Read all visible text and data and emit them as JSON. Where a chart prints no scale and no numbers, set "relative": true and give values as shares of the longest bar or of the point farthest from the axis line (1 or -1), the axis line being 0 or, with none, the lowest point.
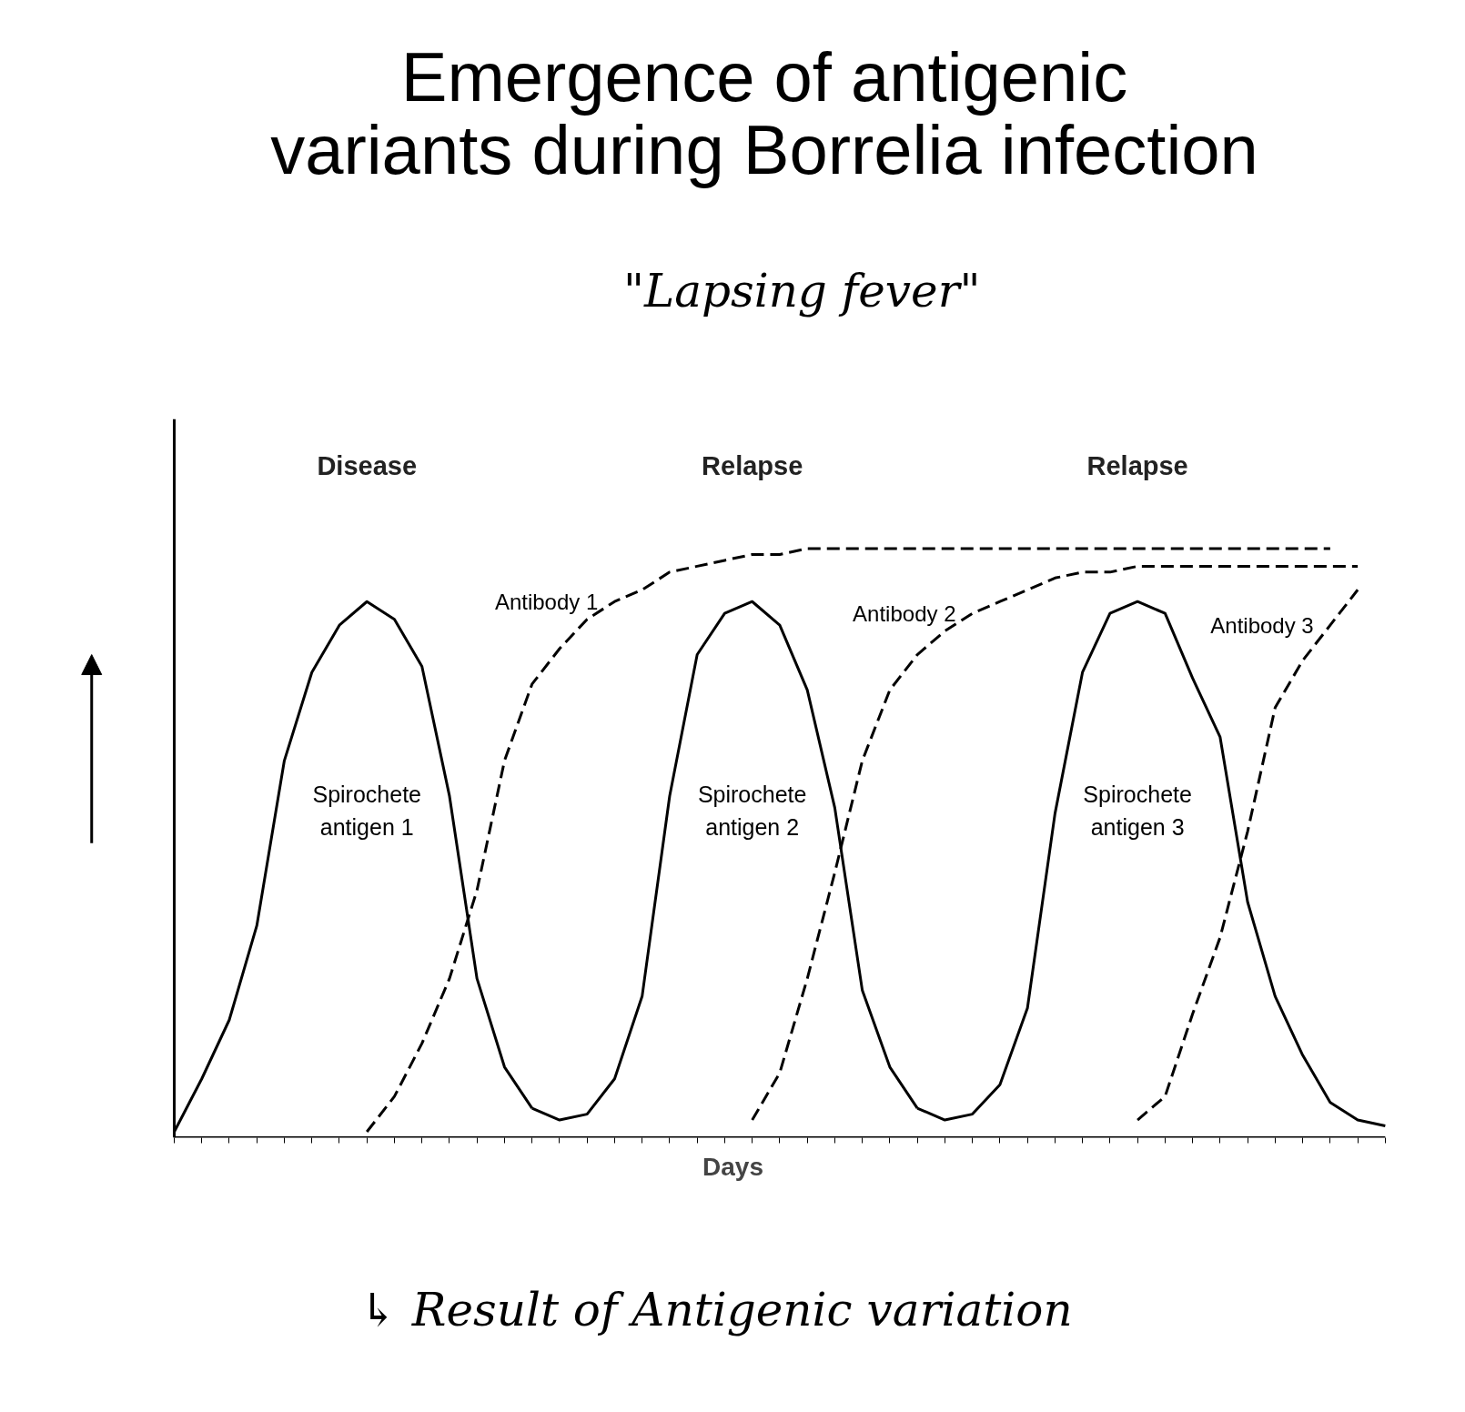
{
  "chart_data": {
    "type": "line",
    "relative": true,
    "title": "Emergence of antigenic variants during Borrelia infection",
    "subtitle": "\"Lapsing fever\"",
    "xlabel": "Days",
    "line_style": "solid",
    "marker": "none",
    "categories": [
      null,
      null,
      null,
      null,
      null,
      null,
      null,
      null,
      null,
      null,
      null,
      null,
      null,
      null,
      null,
      null,
      null,
      null,
      null,
      null,
      null,
      null,
      null,
      null,
      null,
      null,
      null,
      null,
      null,
      null,
      null,
      null,
      null,
      null,
      null,
      null,
      null,
      null,
      null,
      null,
      null,
      null,
      null,
      null,
      null
    ],
    "series": [
      {
        "name": "Spirochete antigen 1",
        "color": "#000000",
        "values": [
          0.01,
          0.1,
          0.2,
          0.36,
          0.64,
          0.79,
          0.87,
          0.91,
          0.88,
          0.8,
          0.58,
          0.27,
          0.12,
          0.05,
          null,
          null,
          null,
          null,
          null,
          null,
          null,
          null,
          null,
          null,
          null,
          null,
          null,
          null,
          null,
          null,
          null,
          null,
          null,
          null,
          null,
          null,
          null,
          null,
          null,
          null,
          null,
          null,
          null,
          null,
          null
        ]
      },
      {
        "name": "Spirochete antigen 2",
        "color": "#000000",
        "values": [
          null,
          null,
          null,
          null,
          null,
          null,
          null,
          null,
          null,
          null,
          null,
          null,
          null,
          0.05,
          0.03,
          0.04,
          0.1,
          0.24,
          0.58,
          0.82,
          0.89,
          0.91,
          0.87,
          0.76,
          0.56,
          0.25,
          0.12,
          0.05,
          null,
          null,
          null,
          null,
          null,
          null,
          null,
          null,
          null,
          null,
          null,
          null,
          null,
          null,
          null,
          null,
          null
        ]
      },
      {
        "name": "Spirochete antigen 3",
        "color": "#000000",
        "values": [
          null,
          null,
          null,
          null,
          null,
          null,
          null,
          null,
          null,
          null,
          null,
          null,
          null,
          null,
          null,
          null,
          null,
          null,
          null,
          null,
          null,
          null,
          null,
          null,
          null,
          null,
          null,
          0.05,
          0.03,
          0.04,
          0.09,
          0.22,
          0.55,
          0.79,
          0.89,
          0.91,
          0.89,
          0.78,
          0.68,
          0.4,
          0.24,
          0.14,
          0.06,
          0.03,
          0.02
        ]
      },
      {
        "name": "Antibody 1",
        "color": "#000000",
        "line_style": "dashed",
        "values": [
          null,
          null,
          null,
          null,
          null,
          null,
          null,
          0.01,
          0.07,
          0.16,
          0.27,
          0.42,
          0.64,
          0.77,
          0.83,
          0.88,
          0.91,
          0.93,
          0.96,
          0.97,
          0.98,
          0.99,
          0.99,
          1,
          1,
          1,
          1,
          1,
          1,
          1,
          1,
          1,
          1,
          1,
          1,
          1,
          1,
          1,
          1,
          1,
          1,
          1,
          1,
          null,
          null
        ]
      },
      {
        "name": "Antibody 2",
        "color": "#000000",
        "line_style": "dashed",
        "values": [
          null,
          null,
          null,
          null,
          null,
          null,
          null,
          null,
          null,
          null,
          null,
          null,
          null,
          null,
          null,
          null,
          null,
          null,
          null,
          null,
          null,
          0.03,
          0.11,
          0.27,
          0.45,
          0.64,
          0.76,
          0.82,
          0.86,
          0.89,
          0.91,
          0.93,
          0.95,
          0.96,
          0.96,
          0.97,
          0.97,
          0.97,
          0.97,
          0.97,
          0.97,
          0.97,
          0.97,
          0.97,
          null
        ]
      },
      {
        "name": "Antibody 3",
        "color": "#000000",
        "line_style": "dashed",
        "values": [
          null,
          null,
          null,
          null,
          null,
          null,
          null,
          null,
          null,
          null,
          null,
          null,
          null,
          null,
          null,
          null,
          null,
          null,
          null,
          null,
          null,
          null,
          null,
          null,
          null,
          null,
          null,
          null,
          null,
          null,
          null,
          null,
          null,
          null,
          null,
          0.03,
          0.07,
          0.21,
          0.34,
          0.52,
          0.73,
          0.81,
          0.87,
          0.93,
          null
        ]
      }
    ],
    "annotations": [
      "Disease",
      "Relapse",
      "Relapse",
      "↳ Result of Antigenic variation"
    ]
  }
}
